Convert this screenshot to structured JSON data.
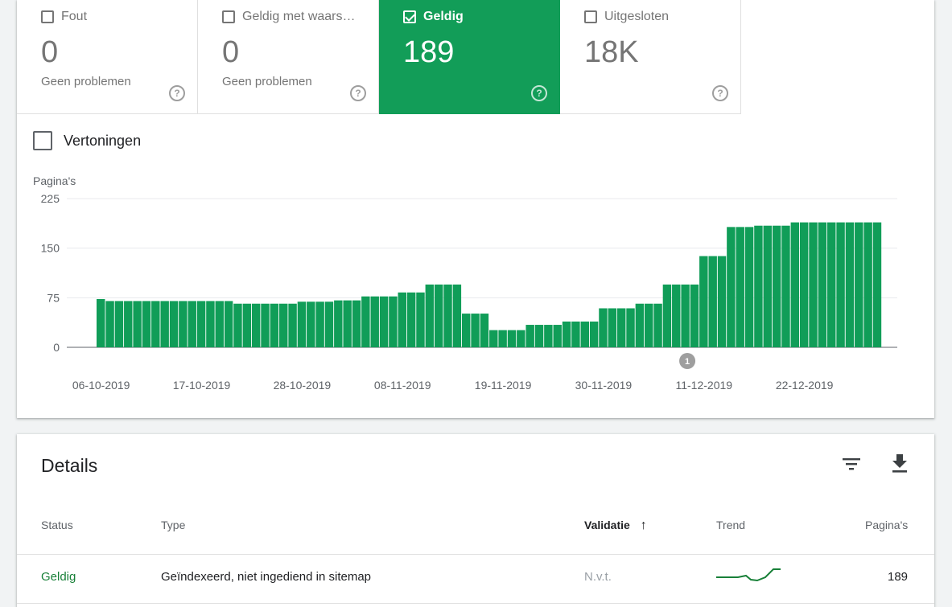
{
  "tiles": [
    {
      "label": "Fout",
      "count": "0",
      "sub": "Geen problemen",
      "active": false
    },
    {
      "label": "Geldig met waars…",
      "count": "0",
      "sub": "Geen problemen",
      "active": false
    },
    {
      "label": "Geldig",
      "count": "189",
      "sub": "",
      "active": true
    },
    {
      "label": "Uitgesloten",
      "count": "18K",
      "sub": "",
      "active": false
    }
  ],
  "help_glyph": "?",
  "impressions_label": "Vertoningen",
  "chart_data": {
    "type": "bar",
    "ylabel": "Pagina's",
    "ylim": [
      0,
      225
    ],
    "yticks": [
      0,
      75,
      150,
      225
    ],
    "xtick_labels": [
      "06-10-2019",
      "17-10-2019",
      "28-10-2019",
      "08-11-2019",
      "19-11-2019",
      "30-11-2019",
      "11-12-2019",
      "22-12-2019"
    ],
    "annotation": {
      "label": "1",
      "date": "09-12-2019"
    },
    "x": [
      "06-10-2019",
      "07-10-2019",
      "08-10-2019",
      "09-10-2019",
      "10-10-2019",
      "11-10-2019",
      "12-10-2019",
      "13-10-2019",
      "14-10-2019",
      "15-10-2019",
      "16-10-2019",
      "17-10-2019",
      "18-10-2019",
      "19-10-2019",
      "20-10-2019",
      "21-10-2019",
      "22-10-2019",
      "23-10-2019",
      "24-10-2019",
      "25-10-2019",
      "26-10-2019",
      "27-10-2019",
      "28-10-2019",
      "29-10-2019",
      "30-10-2019",
      "31-10-2019",
      "01-11-2019",
      "02-11-2019",
      "03-11-2019",
      "04-11-2019",
      "05-11-2019",
      "06-11-2019",
      "07-11-2019",
      "08-11-2019",
      "09-11-2019",
      "10-11-2019",
      "11-11-2019",
      "12-11-2019",
      "13-11-2019",
      "14-11-2019",
      "15-11-2019",
      "16-11-2019",
      "17-11-2019",
      "18-11-2019",
      "19-11-2019",
      "20-11-2019",
      "21-11-2019",
      "22-11-2019",
      "23-11-2019",
      "24-11-2019",
      "25-11-2019",
      "26-11-2019",
      "27-11-2019",
      "28-11-2019",
      "29-11-2019",
      "30-11-2019",
      "01-12-2019",
      "02-12-2019",
      "03-12-2019",
      "04-12-2019",
      "05-12-2019",
      "06-12-2019",
      "07-12-2019",
      "08-12-2019",
      "09-12-2019",
      "10-12-2019",
      "11-12-2019",
      "12-12-2019",
      "13-12-2019",
      "14-12-2019",
      "15-12-2019",
      "16-12-2019",
      "17-12-2019",
      "18-12-2019",
      "19-12-2019",
      "20-12-2019",
      "21-12-2019",
      "22-12-2019",
      "23-12-2019",
      "24-12-2019",
      "25-12-2019",
      "26-12-2019",
      "27-12-2019",
      "28-12-2019",
      "29-12-2019",
      "30-12-2019"
    ],
    "values": [
      73,
      70,
      70,
      70,
      70,
      70,
      70,
      70,
      70,
      70,
      70,
      70,
      70,
      70,
      70,
      66,
      66,
      66,
      66,
      66,
      66,
      66,
      69,
      69,
      69,
      69,
      71,
      71,
      71,
      77,
      77,
      77,
      77,
      83,
      83,
      83,
      95,
      95,
      95,
      95,
      51,
      51,
      51,
      26,
      26,
      26,
      26,
      34,
      34,
      34,
      34,
      39,
      39,
      39,
      39,
      59,
      59,
      59,
      59,
      66,
      66,
      66,
      95,
      95,
      95,
      95,
      138,
      138,
      138,
      182,
      182,
      182,
      184,
      184,
      184,
      184,
      189,
      189,
      189,
      189,
      189,
      189,
      189,
      189,
      189,
      189
    ]
  },
  "details": {
    "title": "Details",
    "columns": {
      "status": "Status",
      "type": "Type",
      "validation": "Validatie",
      "trend": "Trend",
      "pages": "Pagina's"
    },
    "sort_arrow": "↑",
    "rows": [
      {
        "status": "Geldig",
        "type": "Geïndexeerd, niet ingediend in sitemap",
        "validation": "N.v.t.",
        "pages": "189"
      }
    ]
  },
  "colors": {
    "accent": "#129d58",
    "bar": "#109d58",
    "status_green": "#188038"
  }
}
